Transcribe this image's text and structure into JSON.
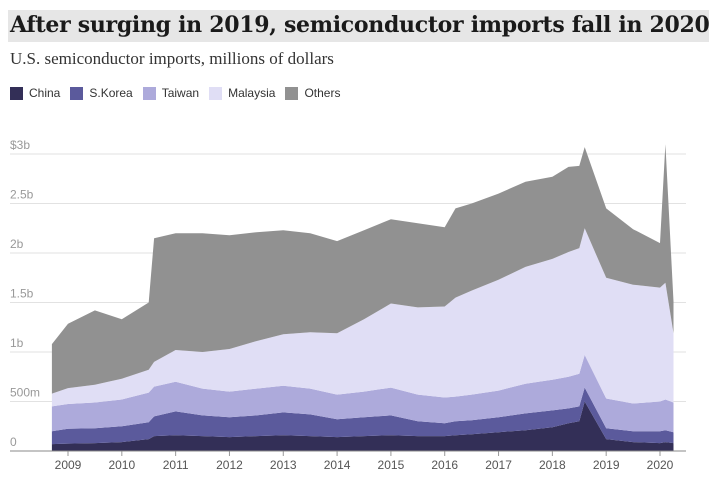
{
  "title": "After surging in 2019, semiconductor imports fall in 2020",
  "subtitle": "U.S. semiconductor imports, millions of dollars",
  "chart_data": {
    "type": "area",
    "stacked": true,
    "title": "After surging in 2019, semiconductor imports fall in 2020",
    "subtitle": "U.S. semiconductor imports, millions of dollars",
    "ylim": [
      0,
      3000
    ],
    "xlim": [
      2008.75,
      2020.3
    ],
    "y_ticks": [
      {
        "value": 0,
        "label": "0"
      },
      {
        "value": 500,
        "label": "500m"
      },
      {
        "value": 1000,
        "label": "1b"
      },
      {
        "value": 1500,
        "label": "1.5b"
      },
      {
        "value": 2000,
        "label": "2b"
      },
      {
        "value": 2500,
        "label": "2.5b"
      },
      {
        "value": 3000,
        "label": "$3b"
      }
    ],
    "x_ticks": [
      "2009",
      "2010",
      "2011",
      "2012",
      "2013",
      "2014",
      "2015",
      "2016",
      "2017",
      "2018",
      "2019",
      "2020"
    ],
    "grid": true,
    "legend_position": "top-left",
    "x": [
      2008.7,
      2009,
      2009.5,
      2010,
      2010.5,
      2010.6,
      2011,
      2011.5,
      2012,
      2012.5,
      2013,
      2013.5,
      2014,
      2014.5,
      2015,
      2015.5,
      2016,
      2016.2,
      2016.5,
      2017,
      2017.5,
      2018,
      2018.3,
      2018.5,
      2018.6,
      2019,
      2019.5,
      2020,
      2020.1,
      2020.25
    ],
    "series": [
      {
        "name": "China",
        "color": "#332f57",
        "values": [
          70,
          75,
          80,
          90,
          120,
          150,
          160,
          150,
          140,
          150,
          160,
          150,
          140,
          150,
          160,
          150,
          150,
          160,
          170,
          190,
          210,
          240,
          280,
          300,
          500,
          120,
          90,
          80,
          90,
          80
        ]
      },
      {
        "name": "S.Korea",
        "color": "#5b5a9c",
        "values": [
          130,
          150,
          150,
          160,
          170,
          200,
          240,
          210,
          200,
          210,
          230,
          220,
          180,
          190,
          200,
          150,
          130,
          140,
          140,
          150,
          170,
          170,
          150,
          150,
          140,
          110,
          110,
          120,
          120,
          110
        ]
      },
      {
        "name": "Taiwan",
        "color": "#adaadb",
        "values": [
          250,
          250,
          260,
          270,
          300,
          300,
          300,
          270,
          260,
          270,
          270,
          260,
          250,
          260,
          280,
          270,
          260,
          250,
          260,
          270,
          300,
          310,
          320,
          330,
          330,
          300,
          280,
          300,
          310,
          300
        ]
      },
      {
        "name": "Malaysia",
        "color": "#e0def5",
        "values": [
          130,
          160,
          180,
          210,
          230,
          250,
          320,
          370,
          430,
          480,
          520,
          570,
          620,
          730,
          850,
          880,
          920,
          1000,
          1050,
          1120,
          1180,
          1220,
          1260,
          1270,
          1280,
          1220,
          1200,
          1150,
          1180,
          700
        ]
      },
      {
        "name": "Others",
        "color": "#919191",
        "values": [
          500,
          650,
          750,
          600,
          680,
          1250,
          1180,
          1200,
          1150,
          1100,
          1050,
          1000,
          930,
          900,
          850,
          850,
          800,
          900,
          880,
          870,
          860,
          830,
          860,
          830,
          820,
          700,
          560,
          450,
          1400,
          320
        ]
      }
    ]
  }
}
